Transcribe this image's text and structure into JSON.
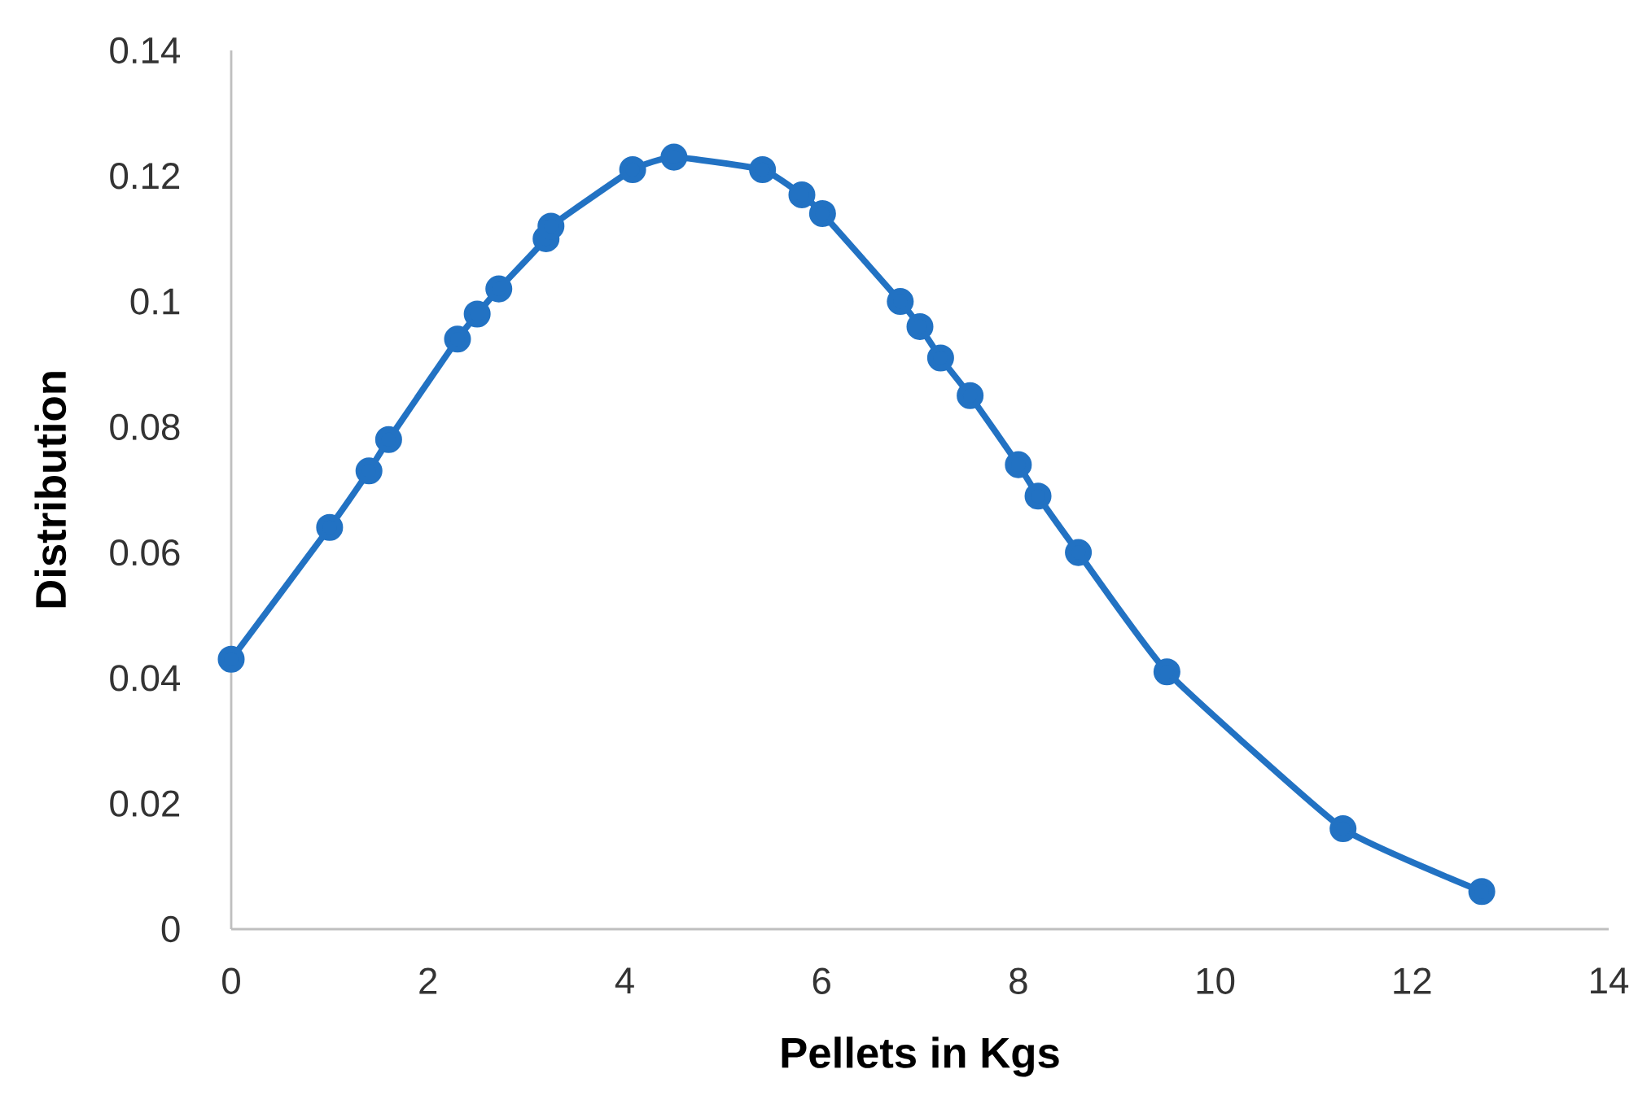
{
  "chart_data": {
    "type": "line",
    "xlabel": "Pellets in Kgs",
    "ylabel": "Distribution",
    "x": [
      0,
      1.0,
      1.4,
      1.6,
      2.3,
      2.5,
      2.72,
      3.2,
      3.25,
      4.08,
      4.5,
      5.4,
      5.8,
      6.01,
      6.8,
      7.0,
      7.21,
      7.51,
      8.0,
      8.2,
      8.61,
      9.51,
      11.3,
      12.71
    ],
    "series": [
      {
        "color": "#2272c3",
        "values": [
          0.043,
          0.064,
          0.073,
          0.078,
          0.094,
          0.098,
          0.102,
          0.11,
          0.112,
          0.121,
          0.123,
          0.121,
          0.117,
          0.114,
          0.1,
          0.096,
          0.091,
          0.085,
          0.074,
          0.069,
          0.06,
          0.041,
          0.016,
          0.006
        ]
      }
    ],
    "xlim": [
      0,
      14
    ],
    "xticks": [
      0,
      2,
      4,
      6,
      8,
      10,
      12,
      14
    ],
    "ylim": [
      0,
      0.14
    ],
    "yticks": [
      0,
      0.02,
      0.04,
      0.06,
      0.08,
      0.1,
      0.12,
      0.14
    ],
    "grid": false,
    "marker": "circle",
    "line_style": "solid"
  }
}
